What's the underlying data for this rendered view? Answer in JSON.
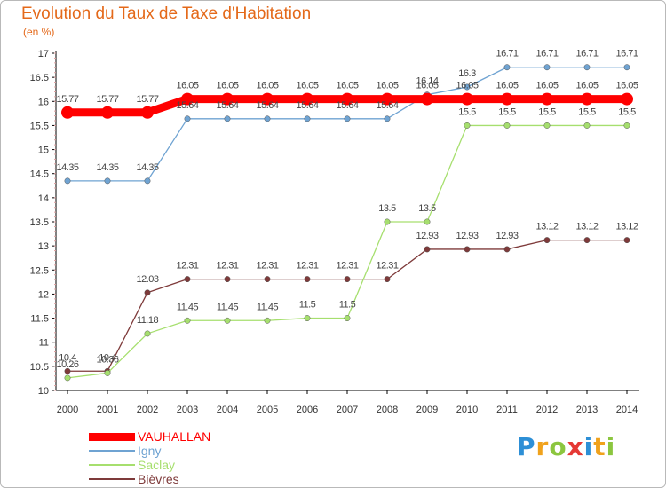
{
  "chart_data": {
    "type": "line",
    "title": "Evolution du Taux de Taxe d'Habitation",
    "subtitle": "(en %)",
    "x": [
      "2000",
      "2001",
      "2002",
      "2003",
      "2004",
      "2005",
      "2006",
      "2007",
      "2008",
      "2009",
      "2010",
      "2011",
      "2012",
      "2013",
      "2014"
    ],
    "ylim": [
      10,
      17
    ],
    "yticks": [
      "10",
      "10.5",
      "11",
      "11.5",
      "12",
      "12.5",
      "13",
      "13.5",
      "14",
      "14.5",
      "15",
      "15.5",
      "16",
      "16.5",
      "17"
    ],
    "grid": false,
    "legend_position": "bottom-left",
    "series": [
      {
        "name": "VAUHALLAN",
        "color": "#ff0000",
        "values": [
          15.77,
          15.77,
          15.77,
          16.05,
          16.05,
          16.05,
          16.05,
          16.05,
          16.05,
          16.05,
          16.05,
          16.05,
          16.05,
          16.05,
          16.05
        ],
        "labels": [
          "15.77",
          "15.77",
          "15.77",
          "16.05",
          "16.05",
          "16.05",
          "16.05",
          "16.05",
          "16.05",
          "16.05",
          "16.05",
          "16.05",
          "16.05",
          "16.05",
          "16.05"
        ]
      },
      {
        "name": "Igny",
        "color": "#6fa3d2",
        "values": [
          14.35,
          14.35,
          14.35,
          15.64,
          15.64,
          15.64,
          15.64,
          15.64,
          15.64,
          16.14,
          16.3,
          16.71,
          16.71,
          16.71,
          16.71
        ],
        "labels": [
          "14.35",
          "14.35",
          "14.35",
          "15.64",
          "15.64",
          "15.64",
          "15.64",
          "15.64",
          "15.64",
          "16.14",
          "16.3",
          "16.71",
          "16.71",
          "16.71",
          "16.71"
        ]
      },
      {
        "name": "Saclay",
        "color": "#a6df6e",
        "values": [
          10.26,
          10.36,
          11.18,
          11.45,
          11.45,
          11.45,
          11.5,
          11.5,
          13.5,
          13.5,
          15.5,
          15.5,
          15.5,
          15.5,
          15.5
        ],
        "labels": [
          "10.26",
          "10.36",
          "11.18",
          "11.45",
          "11.45",
          "11.45",
          "11.5",
          "11.5",
          "13.5",
          "13.5",
          "15.5",
          "15.5",
          "15.5",
          "15.5",
          "15.5"
        ]
      },
      {
        "name": "Bièvres",
        "color": "#7e3a3a",
        "values": [
          10.4,
          10.4,
          12.03,
          12.31,
          12.31,
          12.31,
          12.31,
          12.31,
          12.31,
          12.93,
          12.93,
          12.93,
          13.12,
          13.12,
          13.12
        ],
        "labels": [
          "10.4",
          "10.4",
          "12.03",
          "12.31",
          "12.31",
          "12.31",
          "12.31",
          "12.31",
          "12.31",
          "12.93",
          "12.93",
          "12.93",
          "13.12",
          "13.12",
          "13.12"
        ]
      }
    ]
  },
  "logo": {
    "letters": [
      "P",
      "r",
      "o",
      "x",
      "i",
      "t",
      "i"
    ],
    "colors": [
      "#2d8fd6",
      "#f0a21c",
      "#8cc63f",
      "#e53935",
      "#2d8fd6",
      "#f0a21c",
      "#8cc63f"
    ]
  },
  "colors": {
    "title": "#e4691a",
    "axis": "#000000",
    "tick_minor": "#e0a0a0"
  }
}
